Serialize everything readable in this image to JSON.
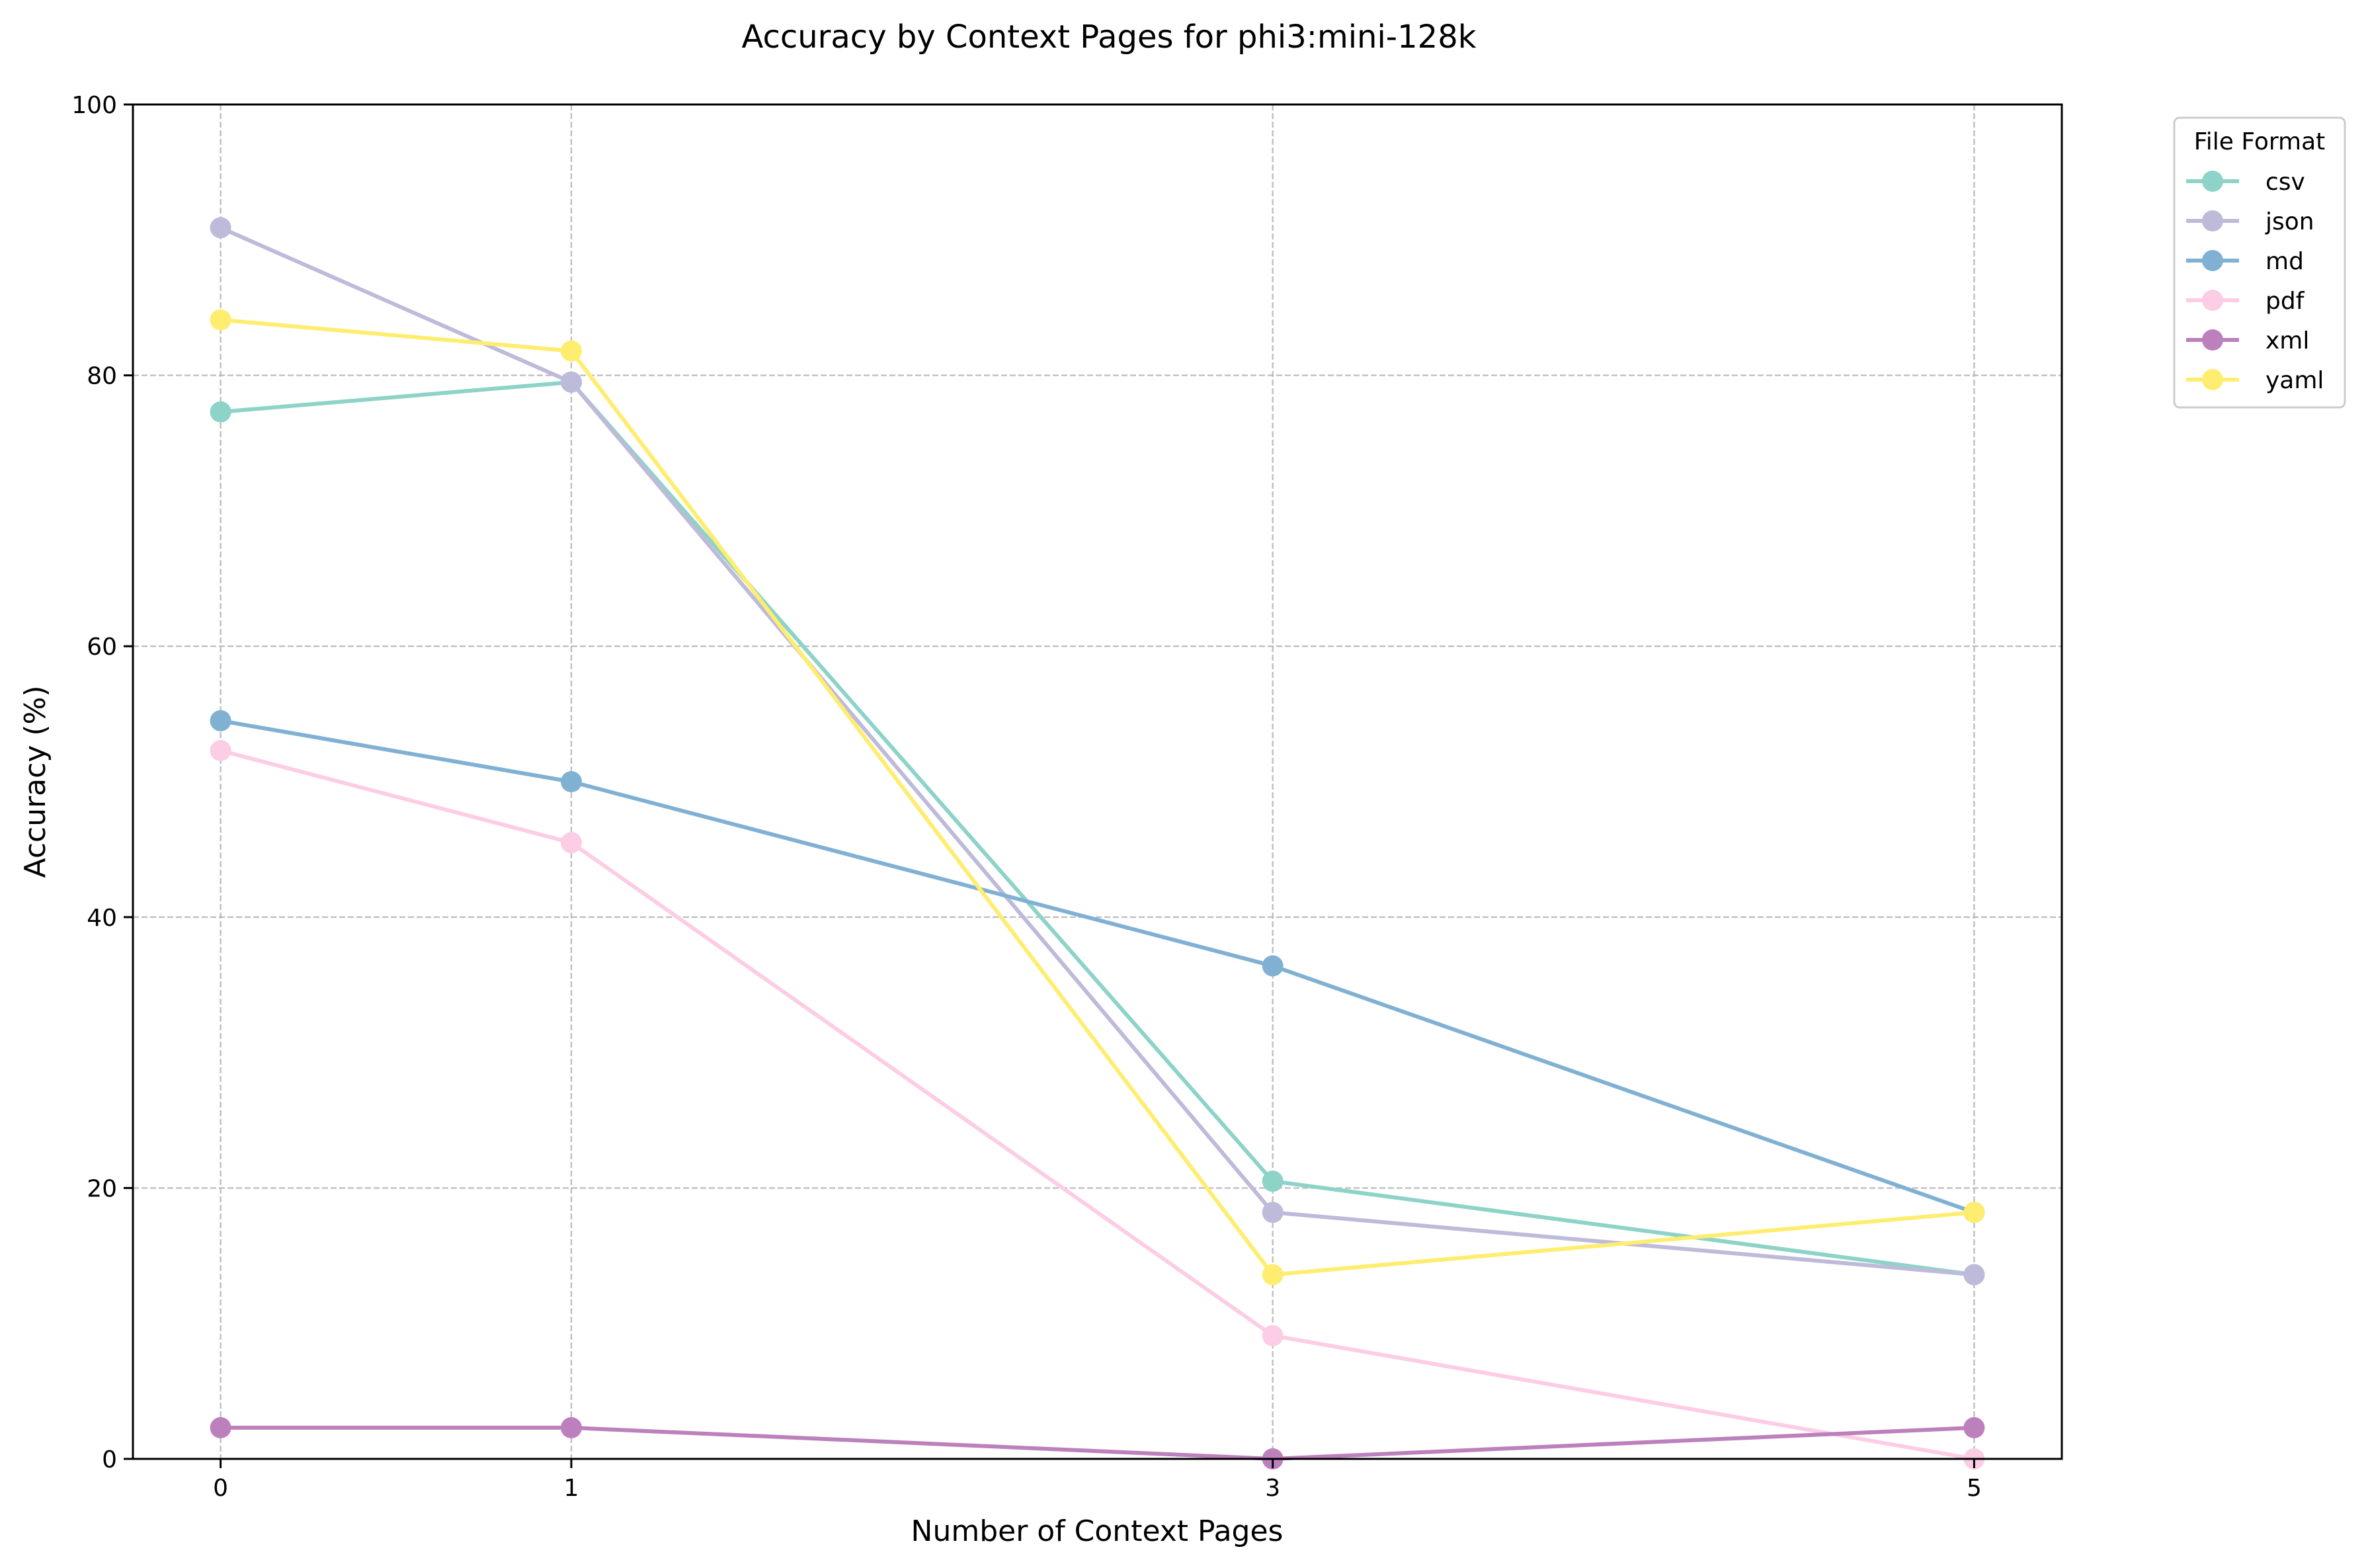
{
  "chart_data": {
    "type": "line",
    "title": "Accuracy by Context Pages for phi3:mini-128k",
    "xlabel": "Number of Context Pages",
    "ylabel": "Accuracy (%)",
    "x": [
      0,
      1,
      3,
      5
    ],
    "xticks": [
      "0",
      "1",
      "3",
      "5"
    ],
    "yticks": [
      "0",
      "20",
      "40",
      "60",
      "80",
      "100"
    ],
    "xlim": [
      -0.25,
      5.25
    ],
    "ylim": [
      0,
      100
    ],
    "grid": true,
    "legend": {
      "title": "File Format",
      "placement": "outside-top-right"
    },
    "series": [
      {
        "name": "csv",
        "color": "#8dd3c7",
        "values": [
          77.3,
          79.5,
          20.5,
          13.6
        ]
      },
      {
        "name": "json",
        "color": "#bebada",
        "values": [
          90.9,
          79.5,
          18.2,
          13.6
        ]
      },
      {
        "name": "md",
        "color": "#80b1d3",
        "values": [
          54.5,
          50.0,
          36.4,
          18.2
        ]
      },
      {
        "name": "pdf",
        "color": "#fccde5",
        "values": [
          52.3,
          45.5,
          9.1,
          0.0
        ]
      },
      {
        "name": "xml",
        "color": "#bc80bd",
        "values": [
          2.3,
          2.3,
          0.0,
          2.3
        ]
      },
      {
        "name": "yaml",
        "color": "#ffed6f",
        "values": [
          84.1,
          81.8,
          13.6,
          18.2
        ]
      }
    ]
  }
}
